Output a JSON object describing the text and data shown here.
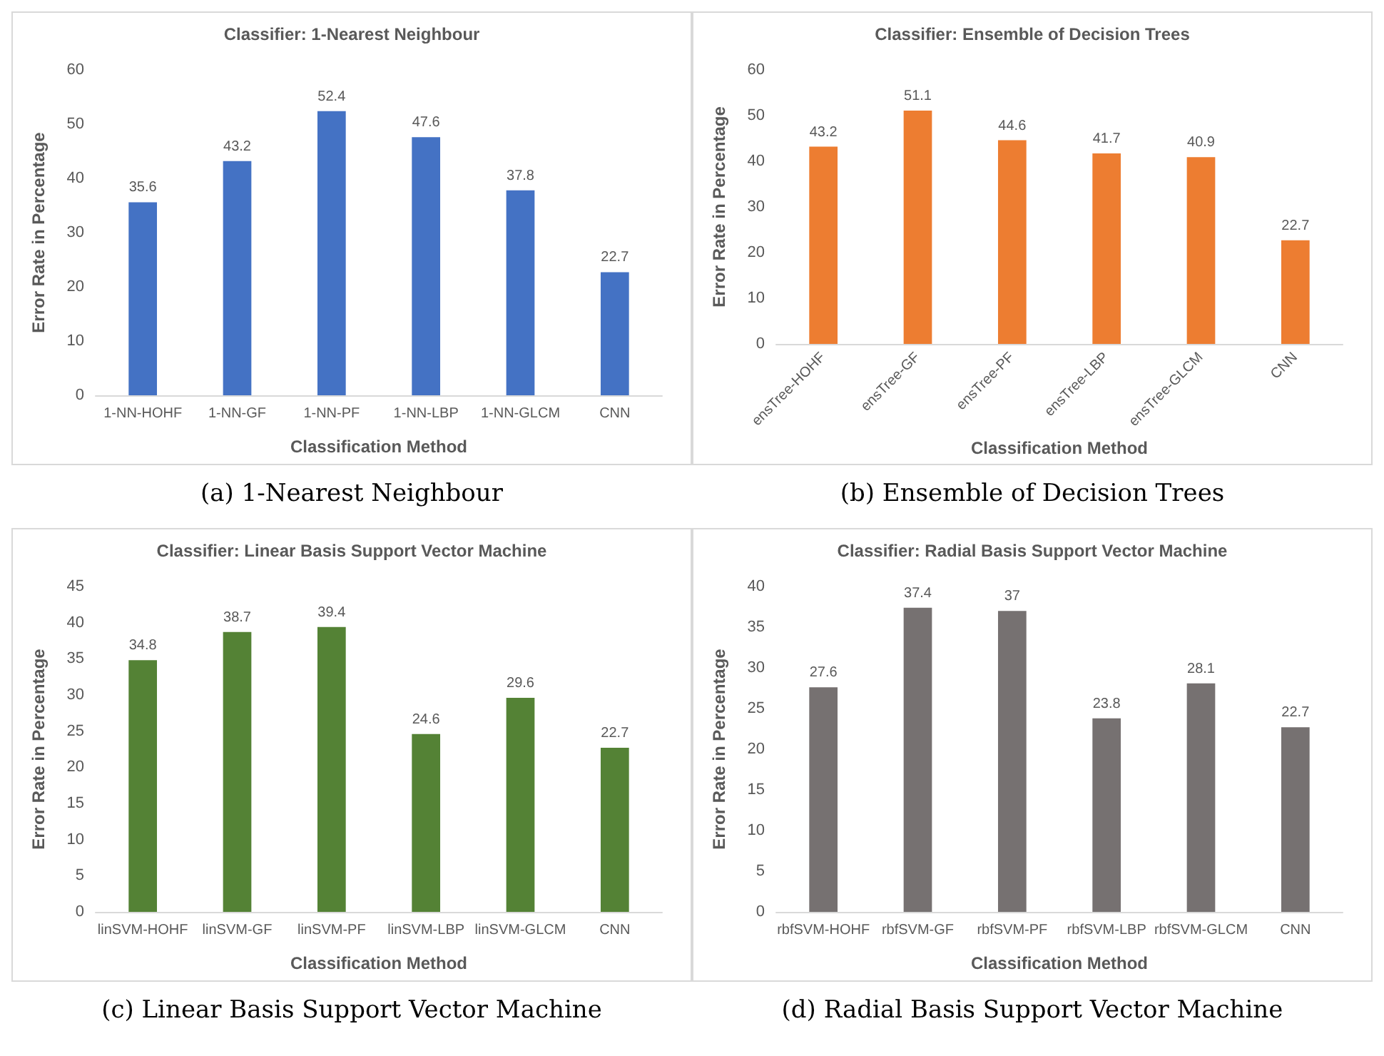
{
  "chart_data": [
    {
      "type": "bar",
      "title": "Classifier: 1-Nearest Neighbour",
      "xlabel": "Classification Method",
      "ylabel": "Error Rate in Percentage",
      "categories": [
        "1-NN-HOHF",
        "1-NN-GF",
        "1-NN-PF",
        "1-NN-LBP",
        "1-NN-GLCM",
        "CNN"
      ],
      "values": [
        35.6,
        43.2,
        52.4,
        47.6,
        37.8,
        22.7
      ],
      "color": "#4472c4",
      "ylim": [
        0,
        60
      ],
      "yticks": [
        0,
        10,
        20,
        30,
        40,
        50,
        60
      ],
      "data_labels": true,
      "annotations": [
        "(a) 1-Nearest Neighbour"
      ]
    },
    {
      "type": "bar",
      "title": "Classifier: Ensemble of Decision Trees",
      "xlabel": "Classification Method",
      "ylabel": "Error Rate in Percentage",
      "categories": [
        "ensTree-HOHF",
        "ensTree-GF",
        "ensTree-PF",
        "ensTree-LBP",
        "ensTree-GLCM",
        "CNN"
      ],
      "values": [
        43.2,
        51.1,
        44.6,
        41.7,
        40.9,
        22.7
      ],
      "color": "#ed7d31",
      "ylim": [
        0,
        60
      ],
      "yticks": [
        0,
        10,
        20,
        30,
        40,
        50,
        60
      ],
      "data_labels": true,
      "annotations": [
        "(b) Ensemble of Decision Trees"
      ]
    },
    {
      "type": "bar",
      "title": "Classifier: Linear Basis Support Vector Machine",
      "xlabel": "Classification Method",
      "ylabel": "Error Rate in Percentage",
      "categories": [
        "linSVM-HOHF",
        "linSVM-GF",
        "linSVM-PF",
        "linSVM-LBP",
        "linSVM-GLCM",
        "CNN"
      ],
      "values": [
        34.8,
        38.7,
        39.4,
        24.6,
        29.6,
        22.7
      ],
      "color": "#548235",
      "ylim": [
        0,
        45
      ],
      "yticks": [
        0,
        5,
        10,
        15,
        20,
        25,
        30,
        35,
        40,
        45
      ],
      "data_labels": true,
      "annotations": [
        "(c) Linear Basis Support Vector Machine"
      ]
    },
    {
      "type": "bar",
      "title": "Classifier: Radial Basis Support Vector Machine",
      "xlabel": "Classification Method",
      "ylabel": "Error Rate in Percentage",
      "categories": [
        "rbfSVM-HOHF",
        "rbfSVM-GF",
        "rbfSVM-PF",
        "rbfSVM-LBP",
        "rbfSVM-GLCM",
        "CNN"
      ],
      "values": [
        27.6,
        37.4,
        37,
        23.8,
        28.1,
        22.7
      ],
      "color": "#767171",
      "ylim": [
        0,
        40
      ],
      "yticks": [
        0,
        5,
        10,
        15,
        20,
        25,
        30,
        35,
        40
      ],
      "data_labels": true,
      "annotations": [
        "(d) Radial Basis Support Vector Machine"
      ]
    }
  ]
}
